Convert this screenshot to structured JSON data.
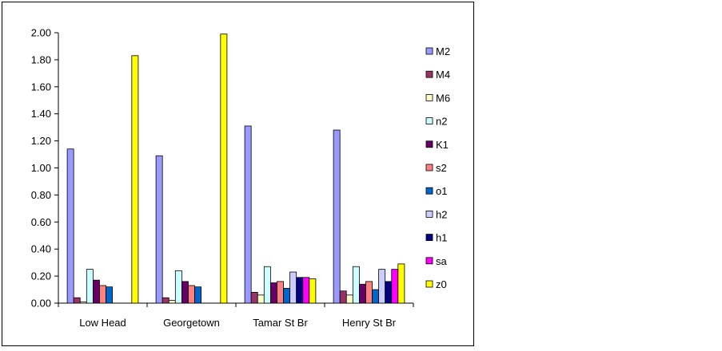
{
  "chart_data": {
    "type": "bar",
    "categories": [
      "Low Head",
      "Georgetown",
      "Tamar St Br",
      "Henry St Br"
    ],
    "ylim": [
      0,
      2.0
    ],
    "yticks": [
      "0.00",
      "0.20",
      "0.40",
      "0.60",
      "0.80",
      "1.00",
      "1.20",
      "1.40",
      "1.60",
      "1.80",
      "2.00"
    ],
    "legend_position": "right",
    "grid": false,
    "series": [
      {
        "name": "M2",
        "color": "#9999ff",
        "values": [
          1.14,
          1.09,
          1.31,
          1.28
        ]
      },
      {
        "name": "M4",
        "color": "#993366",
        "values": [
          0.04,
          0.04,
          0.08,
          0.09
        ]
      },
      {
        "name": "M6",
        "color": "#ffffcc",
        "values": [
          0.01,
          0.02,
          0.06,
          0.06
        ]
      },
      {
        "name": "n2",
        "color": "#ccffff",
        "values": [
          0.25,
          0.24,
          0.27,
          0.27
        ]
      },
      {
        "name": "K1",
        "color": "#660066",
        "values": [
          0.17,
          0.16,
          0.15,
          0.14
        ]
      },
      {
        "name": "s2",
        "color": "#ff8080",
        "values": [
          0.13,
          0.13,
          0.16,
          0.16
        ]
      },
      {
        "name": "o1",
        "color": "#0066cc",
        "values": [
          0.12,
          0.12,
          0.11,
          0.1
        ]
      },
      {
        "name": "h2",
        "color": "#ccccff",
        "values": [
          0,
          0,
          0.23,
          0.25
        ]
      },
      {
        "name": "h1",
        "color": "#000080",
        "values": [
          0,
          0,
          0.19,
          0.16
        ]
      },
      {
        "name": "sa",
        "color": "#ff00ff",
        "values": [
          0,
          0,
          0.19,
          0.25
        ]
      },
      {
        "name": "z0",
        "color": "#ffff00",
        "values": [
          1.83,
          1.99,
          0.18,
          0.29
        ]
      }
    ]
  }
}
